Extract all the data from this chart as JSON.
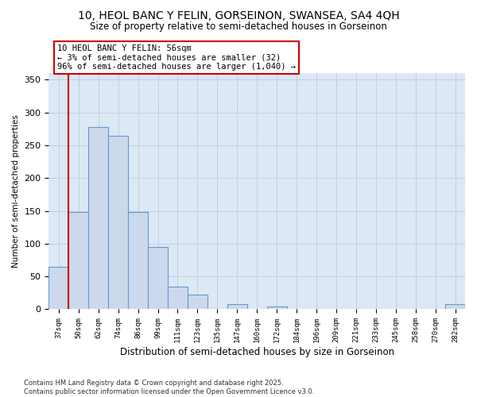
{
  "title": "10, HEOL BANC Y FELIN, GORSEINON, SWANSEA, SA4 4QH",
  "subtitle": "Size of property relative to semi-detached houses in Gorseinon",
  "xlabel": "Distribution of semi-detached houses by size in Gorseinon",
  "ylabel": "Number of semi-detached properties",
  "bar_color": "#ccd9ec",
  "bar_edge_color": "#6699cc",
  "plot_bg_color": "#dde8f5",
  "background_color": "#ffffff",
  "grid_color": "#c0cfe0",
  "annotation_text": "10 HEOL BANC Y FELIN: 56sqm\n← 3% of semi-detached houses are smaller (32)\n96% of semi-detached houses are larger (1,040) →",
  "annotation_box_color": "#ffffff",
  "annotation_box_edge_color": "#cc0000",
  "vline_color": "#cc0000",
  "vline_x": 0.5,
  "footnote": "Contains HM Land Registry data © Crown copyright and database right 2025.\nContains public sector information licensed under the Open Government Licence v3.0.",
  "xtick_labels": [
    "37sqm",
    "50sqm",
    "62sqm",
    "74sqm",
    "86sqm",
    "99sqm",
    "111sqm",
    "123sqm",
    "135sqm",
    "147sqm",
    "160sqm",
    "172sqm",
    "184sqm",
    "196sqm",
    "209sqm",
    "221sqm",
    "233sqm",
    "245sqm",
    "258sqm",
    "270sqm",
    "282sqm"
  ],
  "bar_heights": [
    65,
    148,
    278,
    265,
    148,
    95,
    35,
    22,
    0,
    8,
    0,
    4,
    0,
    0,
    0,
    0,
    0,
    0,
    0,
    0,
    8
  ],
  "ylim": [
    0,
    360
  ],
  "yticks": [
    0,
    50,
    100,
    150,
    200,
    250,
    300,
    350
  ]
}
